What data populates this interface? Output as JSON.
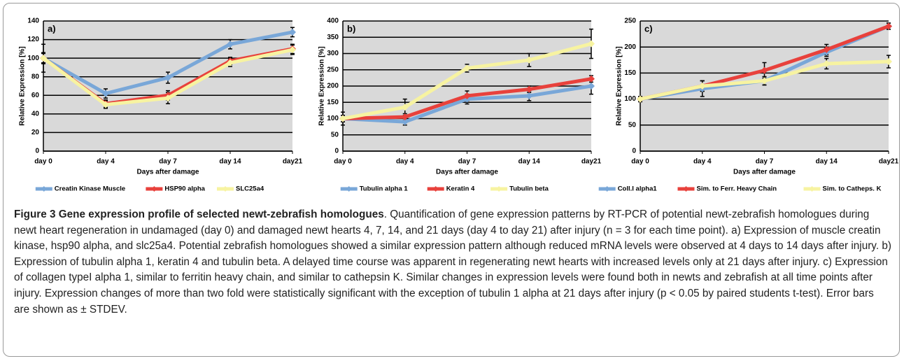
{
  "chart_data": [
    {
      "type": "line",
      "panel": "a)",
      "ylabel": "Relative Expression [%]",
      "xlabel": "Days after damage",
      "categories": [
        "day 0",
        "day 4",
        "day 7",
        "day 14",
        "day21"
      ],
      "ylim": [
        0,
        140
      ],
      "yticks": [
        0,
        20,
        40,
        60,
        80,
        100,
        120,
        140
      ],
      "grid": true,
      "series": [
        {
          "name": "Creatin Kinase Muscle",
          "color": "#79a7d8",
          "values": [
            100,
            62,
            79,
            115,
            128
          ],
          "errors": [
            15,
            5,
            6,
            5,
            5
          ]
        },
        {
          "name": "HSP90 alpha",
          "color": "#e8413c",
          "values": [
            100,
            51,
            60,
            97,
            110
          ],
          "errors": [
            5,
            4,
            5,
            4,
            5
          ]
        },
        {
          "name": "SLC25a4",
          "color": "#f7f3a1",
          "values": [
            100,
            50,
            57,
            95,
            109
          ],
          "errors": [
            6,
            4,
            6,
            4,
            5
          ]
        }
      ]
    },
    {
      "type": "line",
      "panel": "b)",
      "ylabel": "Relative Expression [%]",
      "xlabel": "Days after damage",
      "categories": [
        "day 0",
        "day 4",
        "day 7",
        "day 14",
        "day21"
      ],
      "ylim": [
        0,
        400
      ],
      "yticks": [
        0,
        50,
        100,
        150,
        200,
        250,
        300,
        350,
        400
      ],
      "grid": true,
      "series": [
        {
          "name": "Tubulin alpha 1",
          "color": "#79a7d8",
          "values": [
            100,
            90,
            160,
            170,
            200
          ],
          "errors": [
            20,
            10,
            15,
            15,
            25
          ]
        },
        {
          "name": "Keratin 4",
          "color": "#e8413c",
          "values": [
            100,
            105,
            170,
            190,
            222
          ],
          "errors": [
            10,
            10,
            15,
            10,
            10
          ]
        },
        {
          "name": "Tubulin beta",
          "color": "#f7f3a1",
          "values": [
            100,
            135,
            255,
            280,
            330
          ],
          "errors": [
            10,
            25,
            12,
            20,
            45
          ]
        }
      ]
    },
    {
      "type": "line",
      "panel": "c)",
      "ylabel": "Relative Expression [%]",
      "xlabel": "Days after damage",
      "categories": [
        "day 0",
        "day 4",
        "day 7",
        "day 14",
        "day21"
      ],
      "ylim": [
        0,
        250
      ],
      "yticks": [
        0,
        50,
        100,
        150,
        200,
        250
      ],
      "grid": true,
      "series": [
        {
          "name": "Coll.I alpha1",
          "color": "#79a7d8",
          "values": [
            100,
            120,
            135,
            190,
            240
          ],
          "errors": [
            5,
            15,
            8,
            8,
            6
          ]
        },
        {
          "name": "Sim. to Ferr. Heavy Chain",
          "color": "#e8413c",
          "values": [
            100,
            125,
            155,
            195,
            240
          ],
          "errors": [
            5,
            10,
            15,
            10,
            6
          ]
        },
        {
          "name": "Sim. to Catheps. K",
          "color": "#f7f3a1",
          "values": [
            100,
            125,
            135,
            168,
            172
          ],
          "errors": [
            5,
            10,
            8,
            10,
            12
          ]
        }
      ]
    }
  ],
  "caption": {
    "title": "Figure 3 Gene expression profile of selected newt-zebrafish homologues",
    "text": ". Quantification of gene expression patterns by RT-PCR of potential newt-zebrafish homologues during newt heart regeneration in undamaged (day 0) and damaged newt hearts 4, 7, 14, and 21 days (day 4 to day 21) after injury (n = 3 for each time point). a) Expression of muscle creatin kinase, hsp90 alpha, and slc25a4. Potential zebrafish homologues showed a similar expression pattern although reduced mRNA levels were observed at 4 days to 14 days after injury. b) Expression of tubulin alpha 1, keratin 4 and tubulin beta. A delayed time course was apparent in regenerating newt hearts with increased levels only at 21 days after injury. c) Expression of collagen typeI alpha 1, similar to ferritin heavy chain, and similar to cathepsin K. Similar changes in expression levels were found both in newts and zebrafish at all time points after injury. Expression changes of more than two fold were statistically significant with the exception of tubulin 1 alpha at 21 days after injury (p < 0.05 by paired students t-test). Error bars are shown as ± STDEV."
  }
}
